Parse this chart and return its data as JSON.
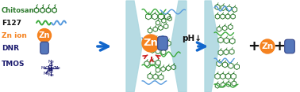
{
  "background_color": "#ffffff",
  "panel_bg": "#aed8e0",
  "chitosan_color": "#2d7a2d",
  "f127_green": "#3aaa3a",
  "f127_blue": "#5599dd",
  "zn_orange": "#f5821f",
  "zn_text": "#ffffff",
  "dnr_blue": "#5577bb",
  "tmos_color": "#1a1a6e",
  "arrow_blue": "#1166cc",
  "arrow_red": "#cc2222",
  "label_chitosan": "Chitosan",
  "label_f127": "F127",
  "label_znion": "Zn ion",
  "label_dnr": "DNR",
  "label_tmos": "TMOS",
  "label_ph": "pH↓",
  "fig_width": 3.78,
  "fig_height": 1.17,
  "dpi": 100
}
